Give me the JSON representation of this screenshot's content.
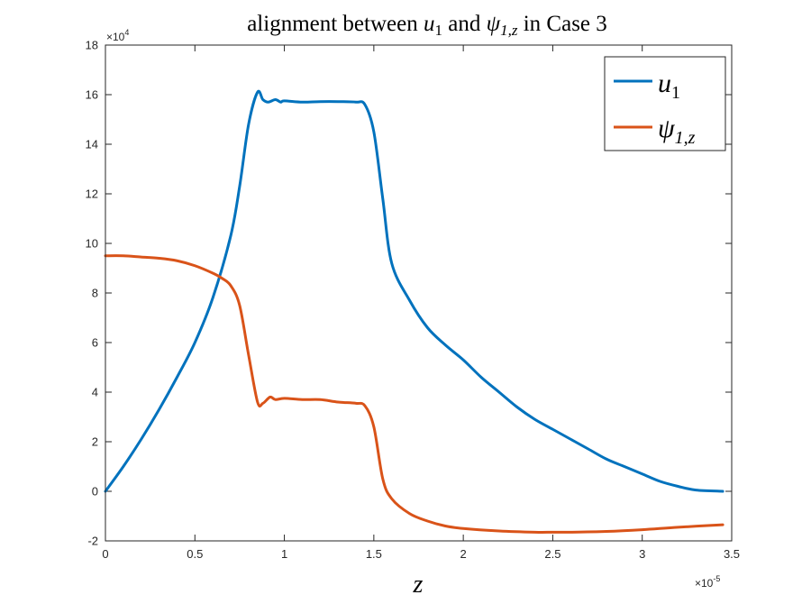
{
  "chart_data": {
    "type": "line",
    "title": {
      "prefix": "alignment between ",
      "sym1": "u",
      "sub1": "1",
      "middle": " and ",
      "sym2": "ψ",
      "sub2": "1,z",
      "suffix": " in Case 3"
    },
    "xlabel": "z",
    "ylabel": "",
    "x_exponent": {
      "base": "×10",
      "power": "-5"
    },
    "y_exponent": {
      "base": "×10",
      "power": "4"
    },
    "xlim": [
      0,
      3.5
    ],
    "ylim": [
      -2,
      18
    ],
    "x_ticks": [
      "0",
      "0.5",
      "1",
      "1.5",
      "2",
      "2.5",
      "3",
      "3.5"
    ],
    "y_ticks": [
      "-2",
      "0",
      "2",
      "4",
      "6",
      "8",
      "10",
      "12",
      "14",
      "16",
      "18"
    ],
    "grid": false,
    "legend_position": "top-right",
    "series": [
      {
        "name": "u1",
        "legend": {
          "sym": "u",
          "sub": "1"
        },
        "color": "#0072BD",
        "points": [
          [
            0,
            0
          ],
          [
            0.1,
            1.0
          ],
          [
            0.2,
            2.1
          ],
          [
            0.3,
            3.3
          ],
          [
            0.4,
            4.6
          ],
          [
            0.5,
            6.0
          ],
          [
            0.6,
            7.8
          ],
          [
            0.7,
            10.3
          ],
          [
            0.75,
            12.3
          ],
          [
            0.8,
            14.8
          ],
          [
            0.85,
            16.1
          ],
          [
            0.88,
            15.8
          ],
          [
            0.91,
            15.7
          ],
          [
            0.95,
            15.8
          ],
          [
            0.98,
            15.7
          ],
          [
            1.0,
            15.75
          ],
          [
            1.1,
            15.7
          ],
          [
            1.2,
            15.72
          ],
          [
            1.3,
            15.72
          ],
          [
            1.4,
            15.7
          ],
          [
            1.45,
            15.6
          ],
          [
            1.5,
            14.5
          ],
          [
            1.55,
            11.8
          ],
          [
            1.6,
            9.2
          ],
          [
            1.7,
            7.7
          ],
          [
            1.8,
            6.6
          ],
          [
            1.9,
            5.9
          ],
          [
            2.0,
            5.3
          ],
          [
            2.1,
            4.6
          ],
          [
            2.2,
            4.0
          ],
          [
            2.3,
            3.4
          ],
          [
            2.4,
            2.9
          ],
          [
            2.5,
            2.5
          ],
          [
            2.6,
            2.1
          ],
          [
            2.7,
            1.7
          ],
          [
            2.8,
            1.3
          ],
          [
            2.9,
            1.0
          ],
          [
            3.0,
            0.7
          ],
          [
            3.1,
            0.4
          ],
          [
            3.2,
            0.2
          ],
          [
            3.3,
            0.05
          ],
          [
            3.45,
            0.0
          ]
        ]
      },
      {
        "name": "psi1z",
        "legend": {
          "sym": "ψ",
          "sub": "1,z"
        },
        "color": "#D95319",
        "points": [
          [
            0,
            9.5
          ],
          [
            0.1,
            9.5
          ],
          [
            0.2,
            9.45
          ],
          [
            0.3,
            9.4
          ],
          [
            0.4,
            9.3
          ],
          [
            0.5,
            9.1
          ],
          [
            0.6,
            8.8
          ],
          [
            0.65,
            8.6
          ],
          [
            0.7,
            8.3
          ],
          [
            0.75,
            7.5
          ],
          [
            0.8,
            5.5
          ],
          [
            0.85,
            3.6
          ],
          [
            0.88,
            3.55
          ],
          [
            0.92,
            3.8
          ],
          [
            0.95,
            3.7
          ],
          [
            1.0,
            3.75
          ],
          [
            1.1,
            3.7
          ],
          [
            1.2,
            3.7
          ],
          [
            1.3,
            3.6
          ],
          [
            1.4,
            3.55
          ],
          [
            1.45,
            3.45
          ],
          [
            1.5,
            2.6
          ],
          [
            1.55,
            0.5
          ],
          [
            1.6,
            -0.3
          ],
          [
            1.7,
            -0.9
          ],
          [
            1.8,
            -1.2
          ],
          [
            1.9,
            -1.4
          ],
          [
            2.0,
            -1.5
          ],
          [
            2.2,
            -1.6
          ],
          [
            2.4,
            -1.65
          ],
          [
            2.5,
            -1.65
          ],
          [
            2.6,
            -1.65
          ],
          [
            2.8,
            -1.62
          ],
          [
            3.0,
            -1.55
          ],
          [
            3.2,
            -1.45
          ],
          [
            3.45,
            -1.35
          ]
        ]
      }
    ]
  }
}
